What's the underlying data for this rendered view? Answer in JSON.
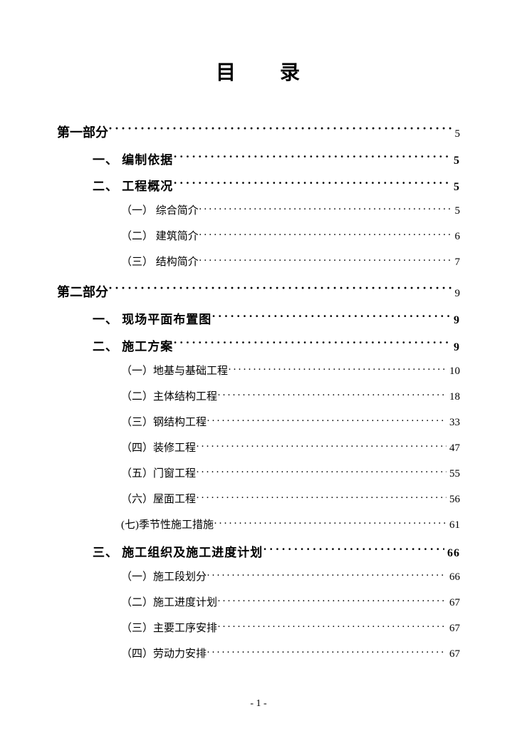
{
  "title": "目　　录",
  "page_footer": "- 1 -",
  "entries": [
    {
      "level": 1,
      "label": "第一部分",
      "page": "5"
    },
    {
      "level": 2,
      "label": "一、 编制依据",
      "page": "5"
    },
    {
      "level": 2,
      "label": "二、 工程概况",
      "page": "5"
    },
    {
      "level": 3,
      "label": "（一） 综合简介",
      "page": "5"
    },
    {
      "level": 3,
      "label": "（二） 建筑简介",
      "page": "6"
    },
    {
      "level": 3,
      "label": "（三） 结构简介",
      "page": "7"
    },
    {
      "level": 1,
      "label": "第二部分",
      "page": "9"
    },
    {
      "level": 2,
      "label": "一、 现场平面布置图",
      "page": "9"
    },
    {
      "level": 2,
      "label": "二、 施工方案",
      "page": "9"
    },
    {
      "level": 3,
      "label": "（一）地基与基础工程",
      "page": "10"
    },
    {
      "level": 3,
      "label": "（二）主体结构工程",
      "page": "18"
    },
    {
      "level": 3,
      "label": "（三）钢结构工程",
      "page": "33"
    },
    {
      "level": 3,
      "label": "（四）装修工程",
      "page": "47"
    },
    {
      "level": 3,
      "label": "（五）门窗工程",
      "page": "55"
    },
    {
      "level": 3,
      "label": "（六）屋面工程",
      "page": "56"
    },
    {
      "level": 3,
      "label": "(七)季节性施工措施",
      "page": "61"
    },
    {
      "level": 2,
      "label": "三、 施工组织及施工进度计划",
      "page": "66"
    },
    {
      "level": 3,
      "label": "（一）施工段划分",
      "page": "66"
    },
    {
      "level": 3,
      "label": "（二）施工进度计划",
      "page": "67"
    },
    {
      "level": 3,
      "label": "（三）主要工序安排",
      "page": "67"
    },
    {
      "level": 3,
      "label": "（四）劳动力安排",
      "page": "67"
    }
  ]
}
